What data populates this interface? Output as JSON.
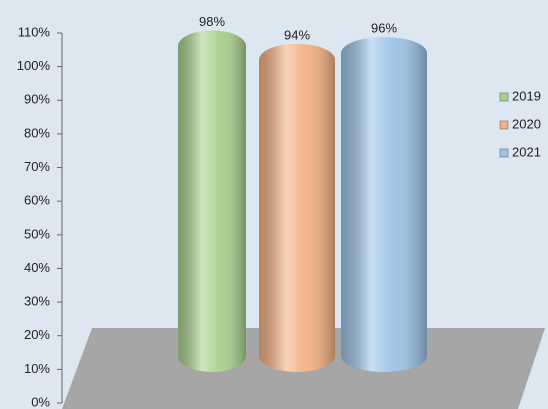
{
  "chart_data": {
    "type": "bar",
    "categories": [
      null
    ],
    "series": [
      {
        "name": "2019",
        "color": "#a9d18e",
        "values": [
          98
        ],
        "value_labels": [
          "98%"
        ]
      },
      {
        "name": "2020",
        "color": "#f4b183",
        "values": [
          94
        ],
        "value_labels": [
          "94%"
        ]
      },
      {
        "name": "2021",
        "color": "#9dc3e6",
        "values": [
          96
        ],
        "value_labels": [
          "96%"
        ]
      }
    ],
    "ylim": [
      0,
      110
    ],
    "yticks": [
      {
        "value": 0,
        "label": "0%"
      },
      {
        "value": 10,
        "label": "10%"
      },
      {
        "value": 20,
        "label": "20%"
      },
      {
        "value": 30,
        "label": "30%"
      },
      {
        "value": 40,
        "label": "40%"
      },
      {
        "value": 50,
        "label": "50%"
      },
      {
        "value": 60,
        "label": "60%"
      },
      {
        "value": 70,
        "label": "70%"
      },
      {
        "value": 80,
        "label": "80%"
      },
      {
        "value": 90,
        "label": "90%"
      },
      {
        "value": 100,
        "label": "100%"
      },
      {
        "value": 110,
        "label": "110%"
      }
    ],
    "legend": "right"
  }
}
